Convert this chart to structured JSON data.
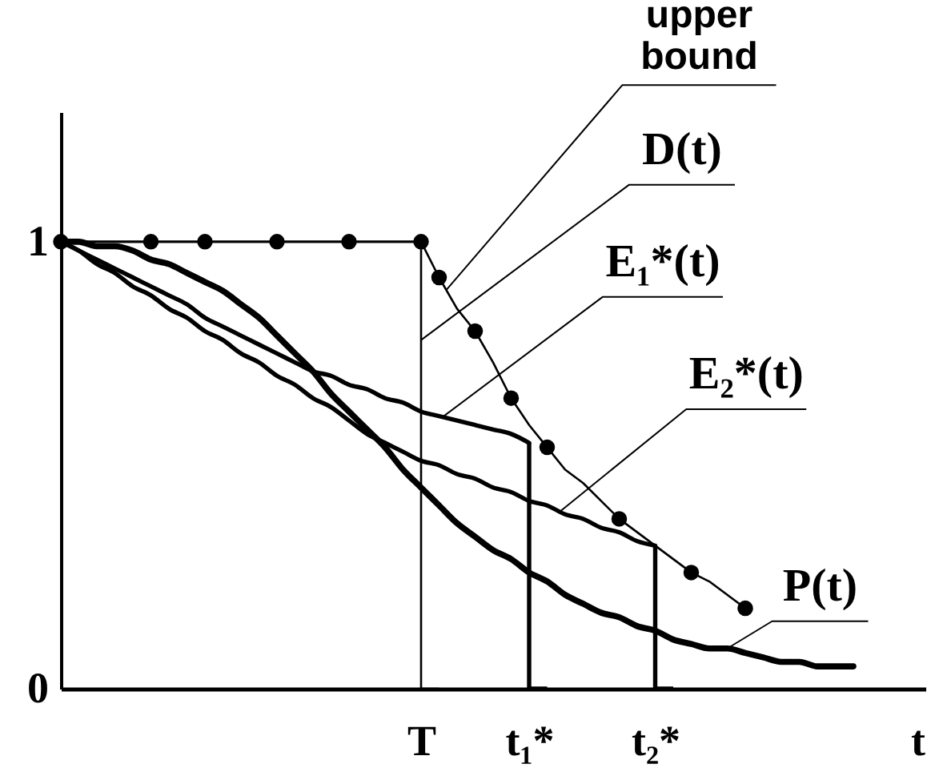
{
  "chart_data": {
    "type": "line",
    "xlabel": "t",
    "categories": [
      null,
      null,
      null,
      null,
      null,
      null,
      null,
      null,
      null,
      null,
      null,
      null,
      null,
      null,
      null,
      null,
      null,
      null,
      null,
      null,
      "T",
      null,
      null,
      null,
      null,
      null,
      "t₁*",
      null,
      null,
      null,
      null,
      null,
      null,
      "t₂*",
      null,
      null,
      null,
      null,
      null,
      null,
      null,
      null,
      null,
      null,
      null,
      null,
      null,
      null,
      null
    ],
    "ylim": [
      0,
      1.29
    ],
    "yticks": [
      0,
      1
    ],
    "series": [
      {
        "name": "upper bound",
        "color": "#000000",
        "values": [
          1,
          1,
          1,
          1,
          1,
          1,
          1,
          1,
          1,
          1,
          1,
          1,
          1,
          1,
          1,
          1,
          1,
          1,
          1,
          1,
          1,
          0.92,
          0.85,
          0.8,
          0.73,
          0.65,
          0.59,
          0.54,
          0.49,
          0.46,
          0.42,
          0.38,
          0.35,
          0.32,
          0.29,
          0.26,
          0.24,
          0.21,
          0.18,
          null,
          null,
          null,
          null,
          null,
          null,
          null,
          null,
          null,
          null
        ]
      },
      {
        "type": "scatter",
        "marker": "circle",
        "color": "#000000",
        "values": [
          1,
          null,
          null,
          null,
          null,
          1,
          null,
          null,
          1,
          null,
          null,
          null,
          1,
          null,
          null,
          null,
          1,
          null,
          null,
          null,
          1,
          0.92,
          null,
          0.8,
          null,
          0.65,
          null,
          0.54,
          null,
          null,
          null,
          0.38,
          null,
          null,
          null,
          0.26,
          null,
          null,
          0.18,
          null,
          null,
          null,
          null,
          null,
          null,
          null,
          null,
          null,
          null
        ]
      },
      {
        "name": "D(t)",
        "type": "step",
        "color": "#000000",
        "values": [
          1,
          1,
          1,
          1,
          1,
          1,
          1,
          1,
          1,
          1,
          1,
          1,
          1,
          1,
          1,
          1,
          1,
          1,
          1,
          1,
          1,
          0,
          null,
          null,
          null,
          null,
          null,
          null,
          null,
          null,
          null,
          null,
          null,
          null,
          null,
          null,
          null,
          null,
          null,
          null,
          null,
          null,
          null,
          null,
          null,
          null,
          null,
          null,
          null
        ]
      },
      {
        "type": "step",
        "color": "#000000",
        "values": [
          null,
          null,
          null,
          null,
          null,
          null,
          null,
          null,
          null,
          null,
          null,
          null,
          null,
          null,
          null,
          null,
          null,
          null,
          null,
          null,
          null,
          null,
          null,
          null,
          null,
          null,
          0.55,
          0,
          null,
          null,
          null,
          null,
          null,
          0.32,
          0,
          null,
          null,
          null,
          null,
          null,
          null,
          null,
          null,
          null,
          null,
          null,
          null,
          null,
          null
        ]
      },
      {
        "name": "E₁*(t)",
        "color": "#000000",
        "values": [
          1,
          0.98,
          0.96,
          0.94,
          0.92,
          0.9,
          0.88,
          0.86,
          0.83,
          0.81,
          0.79,
          0.77,
          0.75,
          0.73,
          0.71,
          0.7,
          0.68,
          0.67,
          0.65,
          0.64,
          0.62,
          0.61,
          0.6,
          0.59,
          0.58,
          0.57,
          0.55,
          null,
          null,
          null,
          null,
          null,
          null,
          null,
          null,
          null,
          null,
          null,
          null,
          null,
          null,
          null,
          null,
          null,
          null,
          null,
          null,
          null,
          null
        ]
      },
      {
        "name": "E₂*(t)",
        "color": "#000000",
        "values": [
          1,
          0.98,
          0.95,
          0.93,
          0.9,
          0.88,
          0.85,
          0.83,
          0.8,
          0.78,
          0.75,
          0.73,
          0.7,
          0.68,
          0.65,
          0.63,
          0.6,
          0.57,
          0.55,
          0.53,
          0.51,
          0.5,
          0.48,
          0.47,
          0.45,
          0.44,
          0.42,
          0.41,
          0.39,
          0.38,
          0.36,
          0.35,
          0.33,
          0.32,
          null,
          null,
          null,
          null,
          null,
          null,
          null,
          null,
          null,
          null,
          null,
          null,
          null,
          null,
          null
        ]
      },
      {
        "name": "P(t)",
        "color": "#000000",
        "values": [
          1,
          1,
          0.99,
          0.99,
          0.98,
          0.96,
          0.95,
          0.93,
          0.91,
          0.89,
          0.86,
          0.83,
          0.79,
          0.75,
          0.71,
          0.66,
          0.62,
          0.58,
          0.54,
          0.49,
          0.45,
          0.41,
          0.37,
          0.34,
          0.31,
          0.29,
          0.26,
          0.24,
          0.21,
          0.19,
          0.17,
          0.16,
          0.14,
          0.13,
          0.11,
          0.1,
          0.09,
          0.09,
          0.08,
          0.07,
          0.06,
          0.06,
          0.05,
          0.05,
          0.05,
          null,
          null,
          null,
          null
        ]
      }
    ]
  }
}
